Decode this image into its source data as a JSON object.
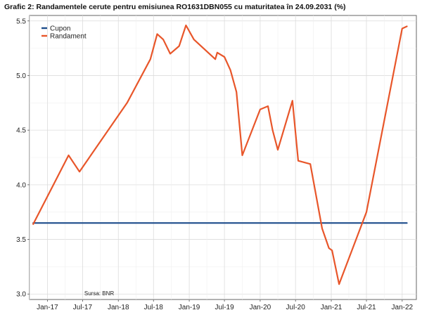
{
  "chart_data": {
    "type": "line",
    "title": "Grafic 2: Randamentele cerute pentru emisiunea RO1631DBN055 cu maturitatea în 24.09.2031 (%)",
    "xlabel": "",
    "ylabel": "",
    "ylim": [
      2.95,
      5.55
    ],
    "yticks": [
      3.0,
      3.5,
      4.0,
      4.5,
      5.0,
      5.5
    ],
    "ytick_labels": [
      "3.0",
      "3.5",
      "4.0",
      "4.5",
      "5.0",
      "5.5"
    ],
    "xlim": [
      "2016-10-01",
      "2022-03-15"
    ],
    "xticks": [
      "2017-01-01",
      "2017-07-01",
      "2018-01-01",
      "2018-07-01",
      "2019-01-01",
      "2019-07-01",
      "2020-01-01",
      "2020-07-01",
      "2021-01-01",
      "2021-07-01",
      "2022-01-01"
    ],
    "xtick_labels": [
      "Jan-17",
      "Jul-17",
      "Jan-18",
      "Jul-18",
      "Jan-19",
      "Jul-19",
      "Jan-20",
      "Jul-20",
      "Jan-21",
      "Jul-21",
      "Jan-22"
    ],
    "grid": true,
    "legend_position": "top-left",
    "series": [
      {
        "name": "Cupon",
        "color": "#1f4e8c",
        "points": [
          [
            "2016-10-20",
            3.65
          ],
          [
            "2022-01-25",
            3.65
          ]
        ]
      },
      {
        "name": "Randament",
        "color": "#e8562a",
        "points": [
          [
            "2016-10-20",
            3.64
          ],
          [
            "2017-04-20",
            4.27
          ],
          [
            "2017-06-15",
            4.12
          ],
          [
            "2018-02-15",
            4.75
          ],
          [
            "2018-06-15",
            5.15
          ],
          [
            "2018-07-20",
            5.38
          ],
          [
            "2018-08-20",
            5.33
          ],
          [
            "2018-09-25",
            5.2
          ],
          [
            "2018-11-10",
            5.27
          ],
          [
            "2018-12-15",
            5.46
          ],
          [
            "2019-01-25",
            5.33
          ],
          [
            "2019-05-15",
            5.15
          ],
          [
            "2019-05-25",
            5.21
          ],
          [
            "2019-07-01",
            5.17
          ],
          [
            "2019-08-01",
            5.05
          ],
          [
            "2019-09-01",
            4.85
          ],
          [
            "2019-10-01",
            4.27
          ],
          [
            "2020-01-01",
            4.69
          ],
          [
            "2020-02-10",
            4.72
          ],
          [
            "2020-03-05",
            4.5
          ],
          [
            "2020-04-01",
            4.32
          ],
          [
            "2020-06-15",
            4.77
          ],
          [
            "2020-07-15",
            4.22
          ],
          [
            "2020-09-15",
            4.19
          ],
          [
            "2020-11-15",
            3.6
          ],
          [
            "2020-12-20",
            3.42
          ],
          [
            "2021-01-05",
            3.4
          ],
          [
            "2021-02-10",
            3.09
          ],
          [
            "2021-07-01",
            3.75
          ],
          [
            "2022-01-01",
            5.43
          ],
          [
            "2022-01-25",
            5.45
          ]
        ]
      }
    ],
    "annotations": [
      {
        "text": "Sursa: BNR",
        "x": "2017-07-10",
        "y": 3.0
      }
    ]
  }
}
